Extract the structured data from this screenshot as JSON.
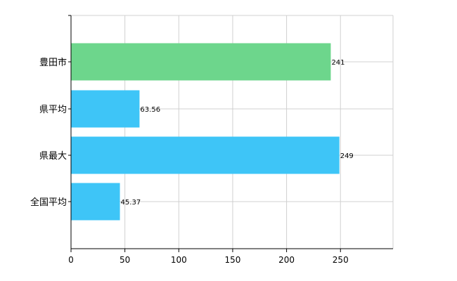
{
  "chart_data": {
    "type": "bar",
    "orientation": "horizontal",
    "categories": [
      "豊田市",
      "県平均",
      "県最大",
      "全国平均"
    ],
    "values": [
      241,
      63.56,
      249,
      45.37
    ],
    "data_labels": [
      "241",
      "63.56",
      "249",
      "45.37"
    ],
    "colors": [
      "#6dd68c",
      "#3ec5f7",
      "#3ec5f7",
      "#3ec5f7"
    ],
    "xlim": [
      0,
      300
    ],
    "xticks": [
      0,
      50,
      100,
      150,
      200,
      250
    ],
    "xtick_labels": [
      "0",
      "50",
      "100",
      "150",
      "200",
      "250"
    ],
    "grid": true,
    "title": "",
    "xlabel": "",
    "ylabel": ""
  }
}
